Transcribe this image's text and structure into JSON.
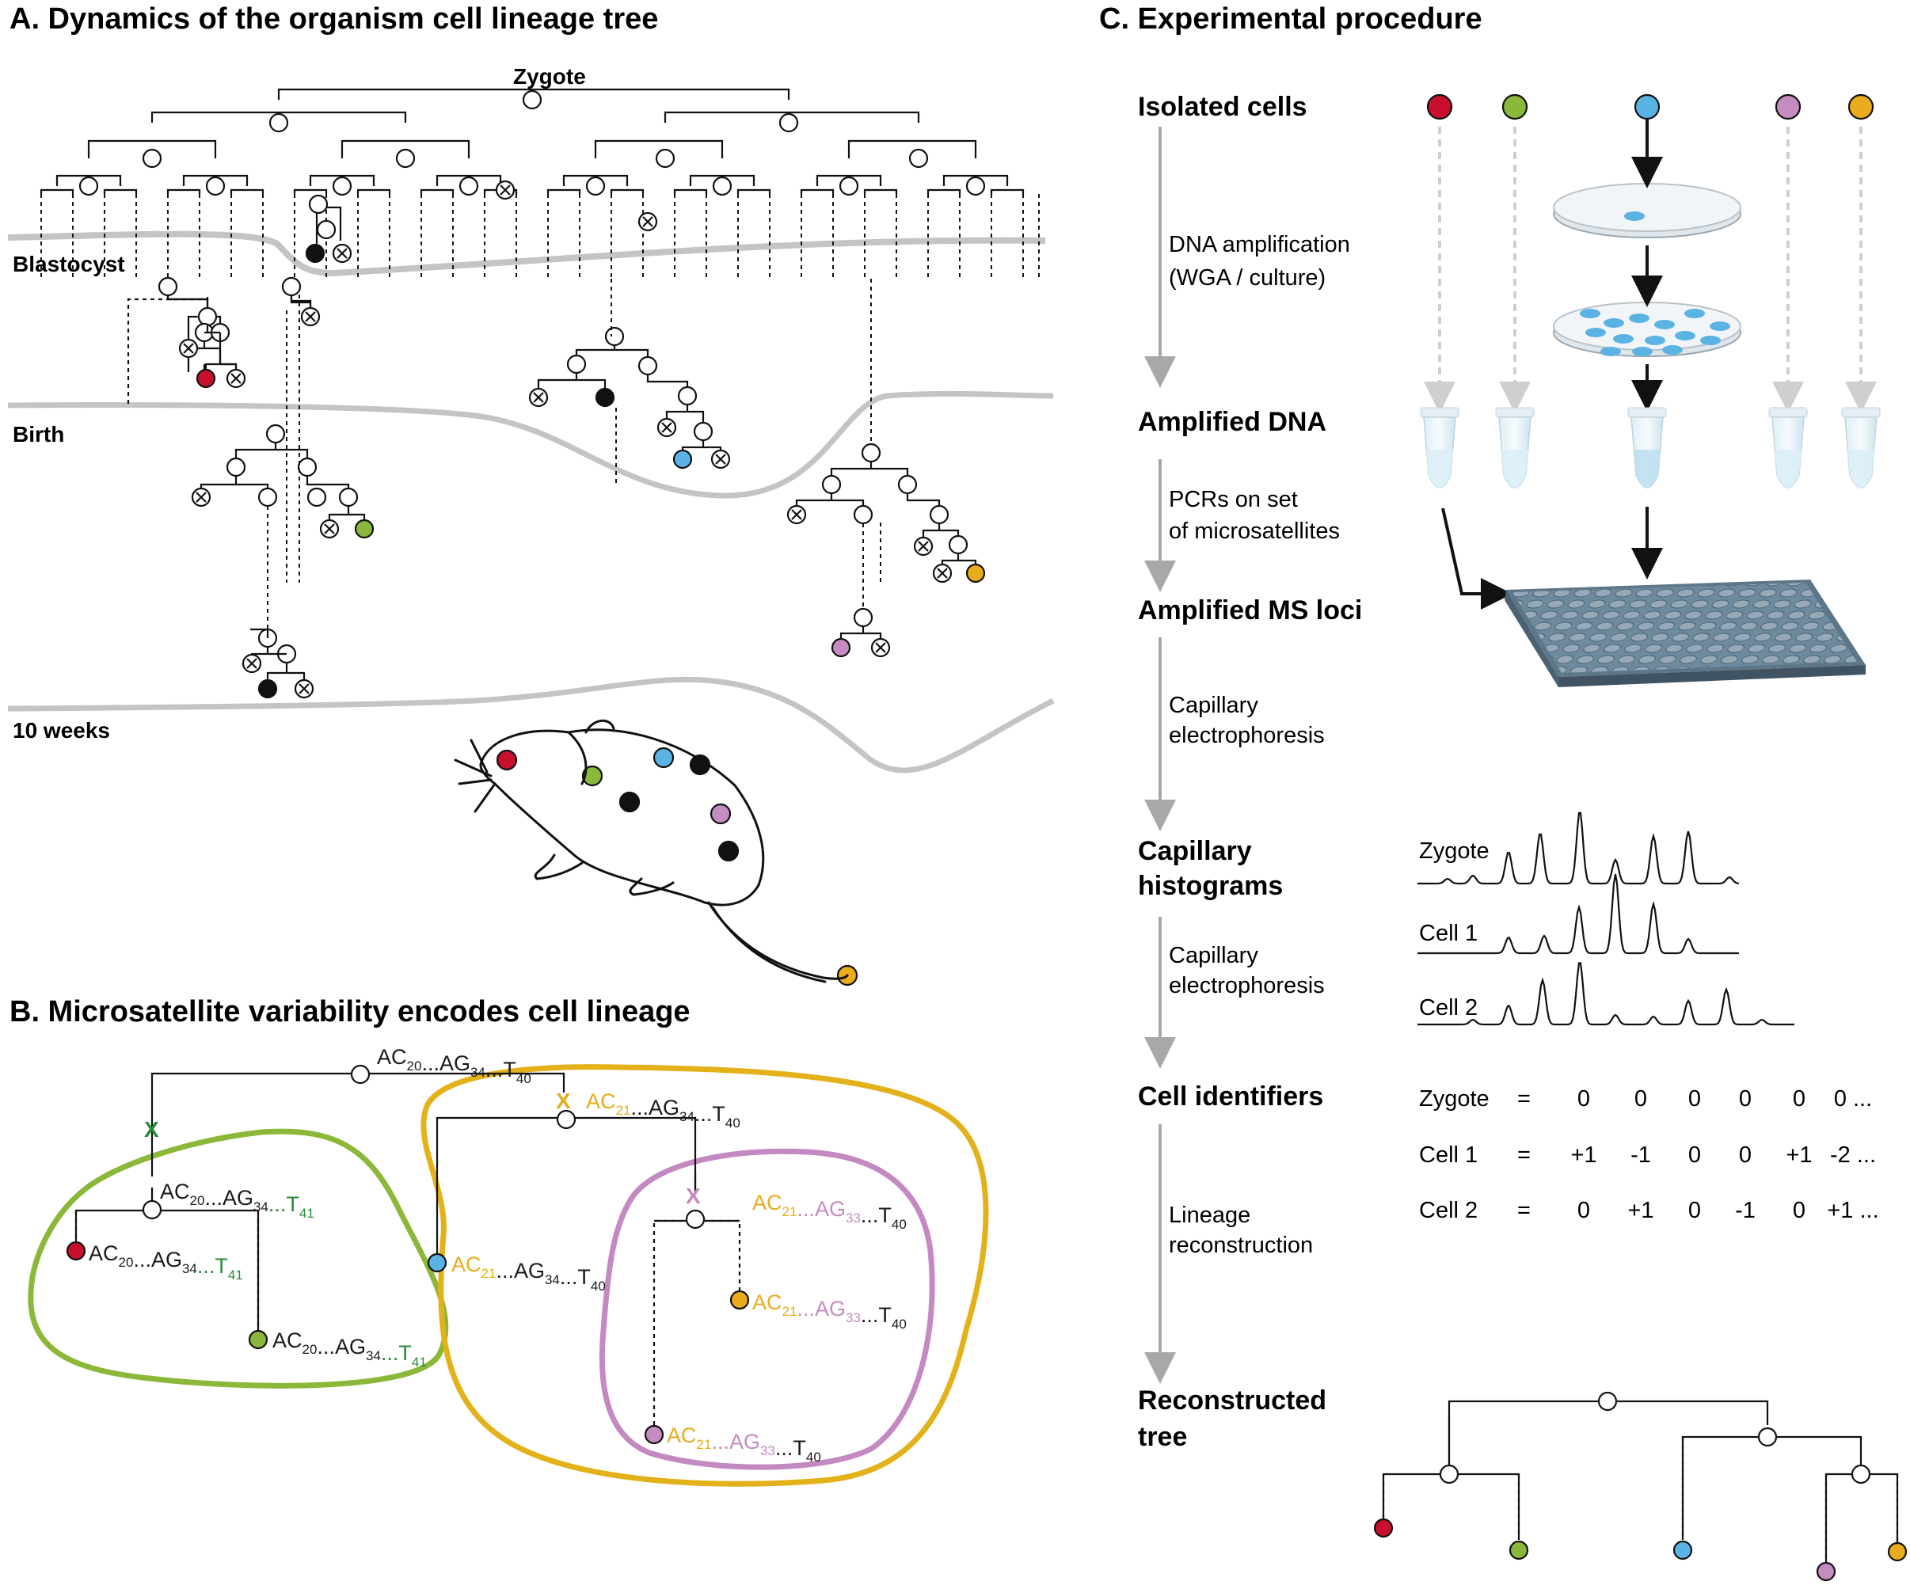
{
  "panel_a": {
    "title": "A.  Dynamics of the organism cell lineage tree",
    "root_label": "Zygote",
    "stages": [
      "Blastocyst",
      "Birth",
      "10 weeks"
    ]
  },
  "panel_b": {
    "title": "B.  Microsatellite variability encodes cell lineage",
    "mutation_mark": "X",
    "sequences": {
      "root": [
        {
          "t": "AC"
        },
        {
          "s": "20"
        },
        {
          "t": "...AG"
        },
        {
          "s": "34"
        },
        {
          "t": "...T"
        },
        {
          "s": "40"
        }
      ],
      "green": [
        {
          "t": "AC"
        },
        {
          "s": "20"
        },
        {
          "t": "...AG"
        },
        {
          "s": "34"
        },
        {
          "t": "...T",
          "c": "green"
        },
        {
          "s": "41",
          "c": "green"
        }
      ],
      "yellow": [
        {
          "t": "AC",
          "c": "yellow"
        },
        {
          "s": "21",
          "c": "yellow"
        },
        {
          "t": "...AG"
        },
        {
          "s": "34"
        },
        {
          "t": "...T"
        },
        {
          "s": "40"
        }
      ],
      "purple": [
        {
          "t": "AC",
          "c": "yellow"
        },
        {
          "s": "21",
          "c": "yellow"
        },
        {
          "t": "...AG",
          "c": "purple"
        },
        {
          "s": "33",
          "c": "purple"
        },
        {
          "t": "...T"
        },
        {
          "s": "40"
        }
      ]
    }
  },
  "panel_c": {
    "title": "C. Experimental procedure",
    "steps": [
      "Isolated cells",
      "Amplified DNA",
      "Amplified MS loci",
      "Capillary",
      "histograms",
      "Cell identifiers",
      "Reconstructed",
      "tree"
    ],
    "descriptions": [
      [
        "DNA amplification",
        "(WGA / culture)"
      ],
      [
        "PCRs on set",
        "of microsatellites"
      ],
      [
        "Capillary",
        "electrophoresis"
      ],
      [
        "Capillary",
        "electrophoresis"
      ],
      [
        "Lineage",
        "reconstruction"
      ]
    ],
    "histogram_labels": [
      "Zygote",
      "Cell 1",
      "Cell 2"
    ],
    "identifiers": [
      {
        "label": "Zygote",
        "eq": "=",
        "values": [
          "0",
          "0",
          "0",
          "0",
          "0",
          "0 ..."
        ]
      },
      {
        "label": "Cell 1",
        "eq": "=",
        "values": [
          "+1",
          "-1",
          "0",
          "0",
          "+1",
          "-2 ..."
        ]
      },
      {
        "label": "Cell 2",
        "eq": "=",
        "values": [
          "0",
          "+1",
          "0",
          "-1",
          "0",
          "+1 ..."
        ]
      }
    ]
  },
  "colors": {
    "red": "#c8102e",
    "green": "#8ab83a",
    "blue": "#5bb3e3",
    "purple": "#c48cc0",
    "yellow": "#e8ac1c",
    "black": "#111111",
    "grey": "#c4c4c4",
    "seq_green": "#2a8a3a",
    "outline_green": "#8cb83a",
    "outline_yellow": "#e3b11a",
    "outline_purple": "#c489c0"
  },
  "icons": [
    "mouse-illustration",
    "culture-dish-icon",
    "tube-icon",
    "well-plate-icon",
    "x-mark-icon",
    "histogram-trace"
  ]
}
